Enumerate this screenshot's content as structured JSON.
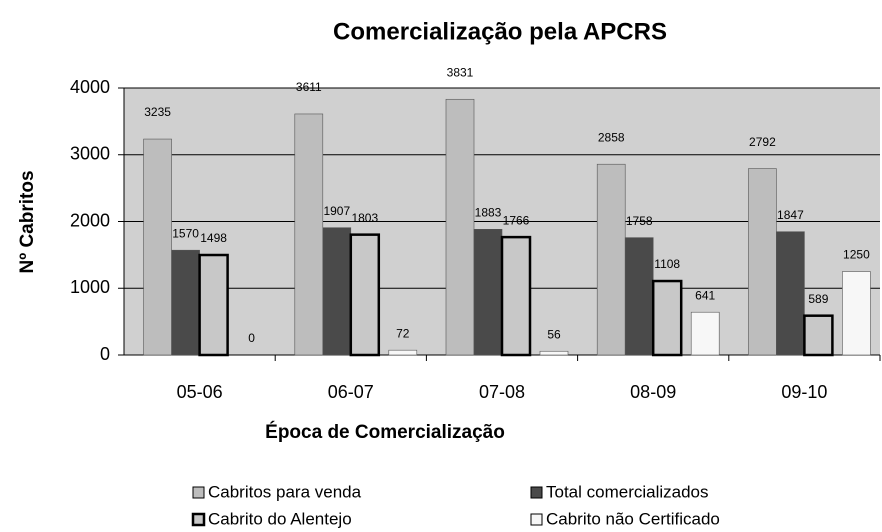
{
  "chart_data": {
    "type": "bar",
    "title": "Comercialização pela APCRS",
    "x_label": "Época de Comercialização",
    "y_label": "Nº Cabritos",
    "categories": [
      "05-06",
      "06-07",
      "07-08",
      "08-09",
      "09-10"
    ],
    "series": [
      {
        "name": "Cabritos para venda",
        "color": "#bdbdbd",
        "values": [
          3235,
          3611,
          3831,
          2858,
          2792
        ]
      },
      {
        "name": "Total comercializados",
        "color": "#4a4a4a",
        "values": [
          1570,
          1907,
          1883,
          1758,
          1847
        ]
      },
      {
        "name": "Cabrito do Alentejo",
        "color": "#c8c8c8",
        "edgecolor": "#000000",
        "values": [
          1498,
          1803,
          1766,
          1108,
          589
        ]
      },
      {
        "name": "Cabrito não Certificado",
        "color": "#f7f7f7",
        "values": [
          0,
          72,
          56,
          641,
          1250
        ]
      }
    ],
    "ylim": [
      0,
      4000
    ],
    "yticks": [
      0,
      1000,
      2000,
      3000,
      4000
    ],
    "grid": true
  }
}
